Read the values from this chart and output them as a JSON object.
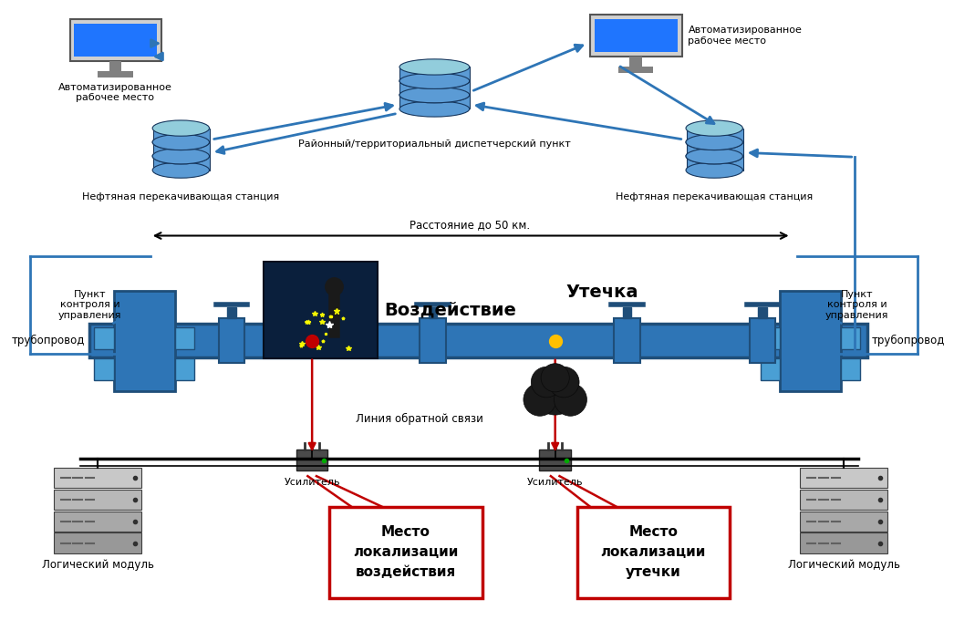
{
  "bg_color": "#ffffff",
  "fig_width": 10.46,
  "fig_height": 6.8,
  "texts": {
    "arm_left": "Автоматизированное\nрабочее место",
    "arm_right": "Автоматизированное\nрабочее место",
    "dispatch_center": "Районный/территориальный диспетчерский пункт",
    "station_left": "Нефтяная перекачивающая станция",
    "station_right": "Нефтяная перекачивающая станция",
    "distance": "Расстояние до 50 км.",
    "control_left": "Пункт\nконтроля и\nуправления",
    "control_right": "Пункт\nконтроля и\nуправления",
    "pipeline_left": "трубопровод",
    "pipeline_right": "трубопровод",
    "logic_left": "Логический модуль",
    "logic_right": "Логический модуль",
    "feedback": "Линия обратной связи",
    "amplifier_left": "Усилитель",
    "amplifier_right": "Усилитель",
    "impact": "Воздействие",
    "leak": "Утечка",
    "localization_impact": "Место\nлокализации\nвоздействия",
    "localization_leak": "Место\nлокализации\nутечки"
  },
  "colors": {
    "blue_arrow": "#2E75B6",
    "red_arrow": "#C00000",
    "pipeline_blue": "#2E75B6",
    "pipeline_dark": "#1F4E79",
    "pipeline_light": "#4A9FD4",
    "box_blue_border": "#2E75B6",
    "valve_blue": "#2E75B6",
    "dot_red": "#C00000",
    "dot_orange": "#FFC000",
    "db_blue": "#5B9BD5",
    "db_light": "#92CDDC",
    "db_dark": "#17375E",
    "server_light": "#C0C0C0",
    "server_mid": "#A0A0A0",
    "server_dark": "#707070",
    "bg": "#FFFFFF"
  }
}
